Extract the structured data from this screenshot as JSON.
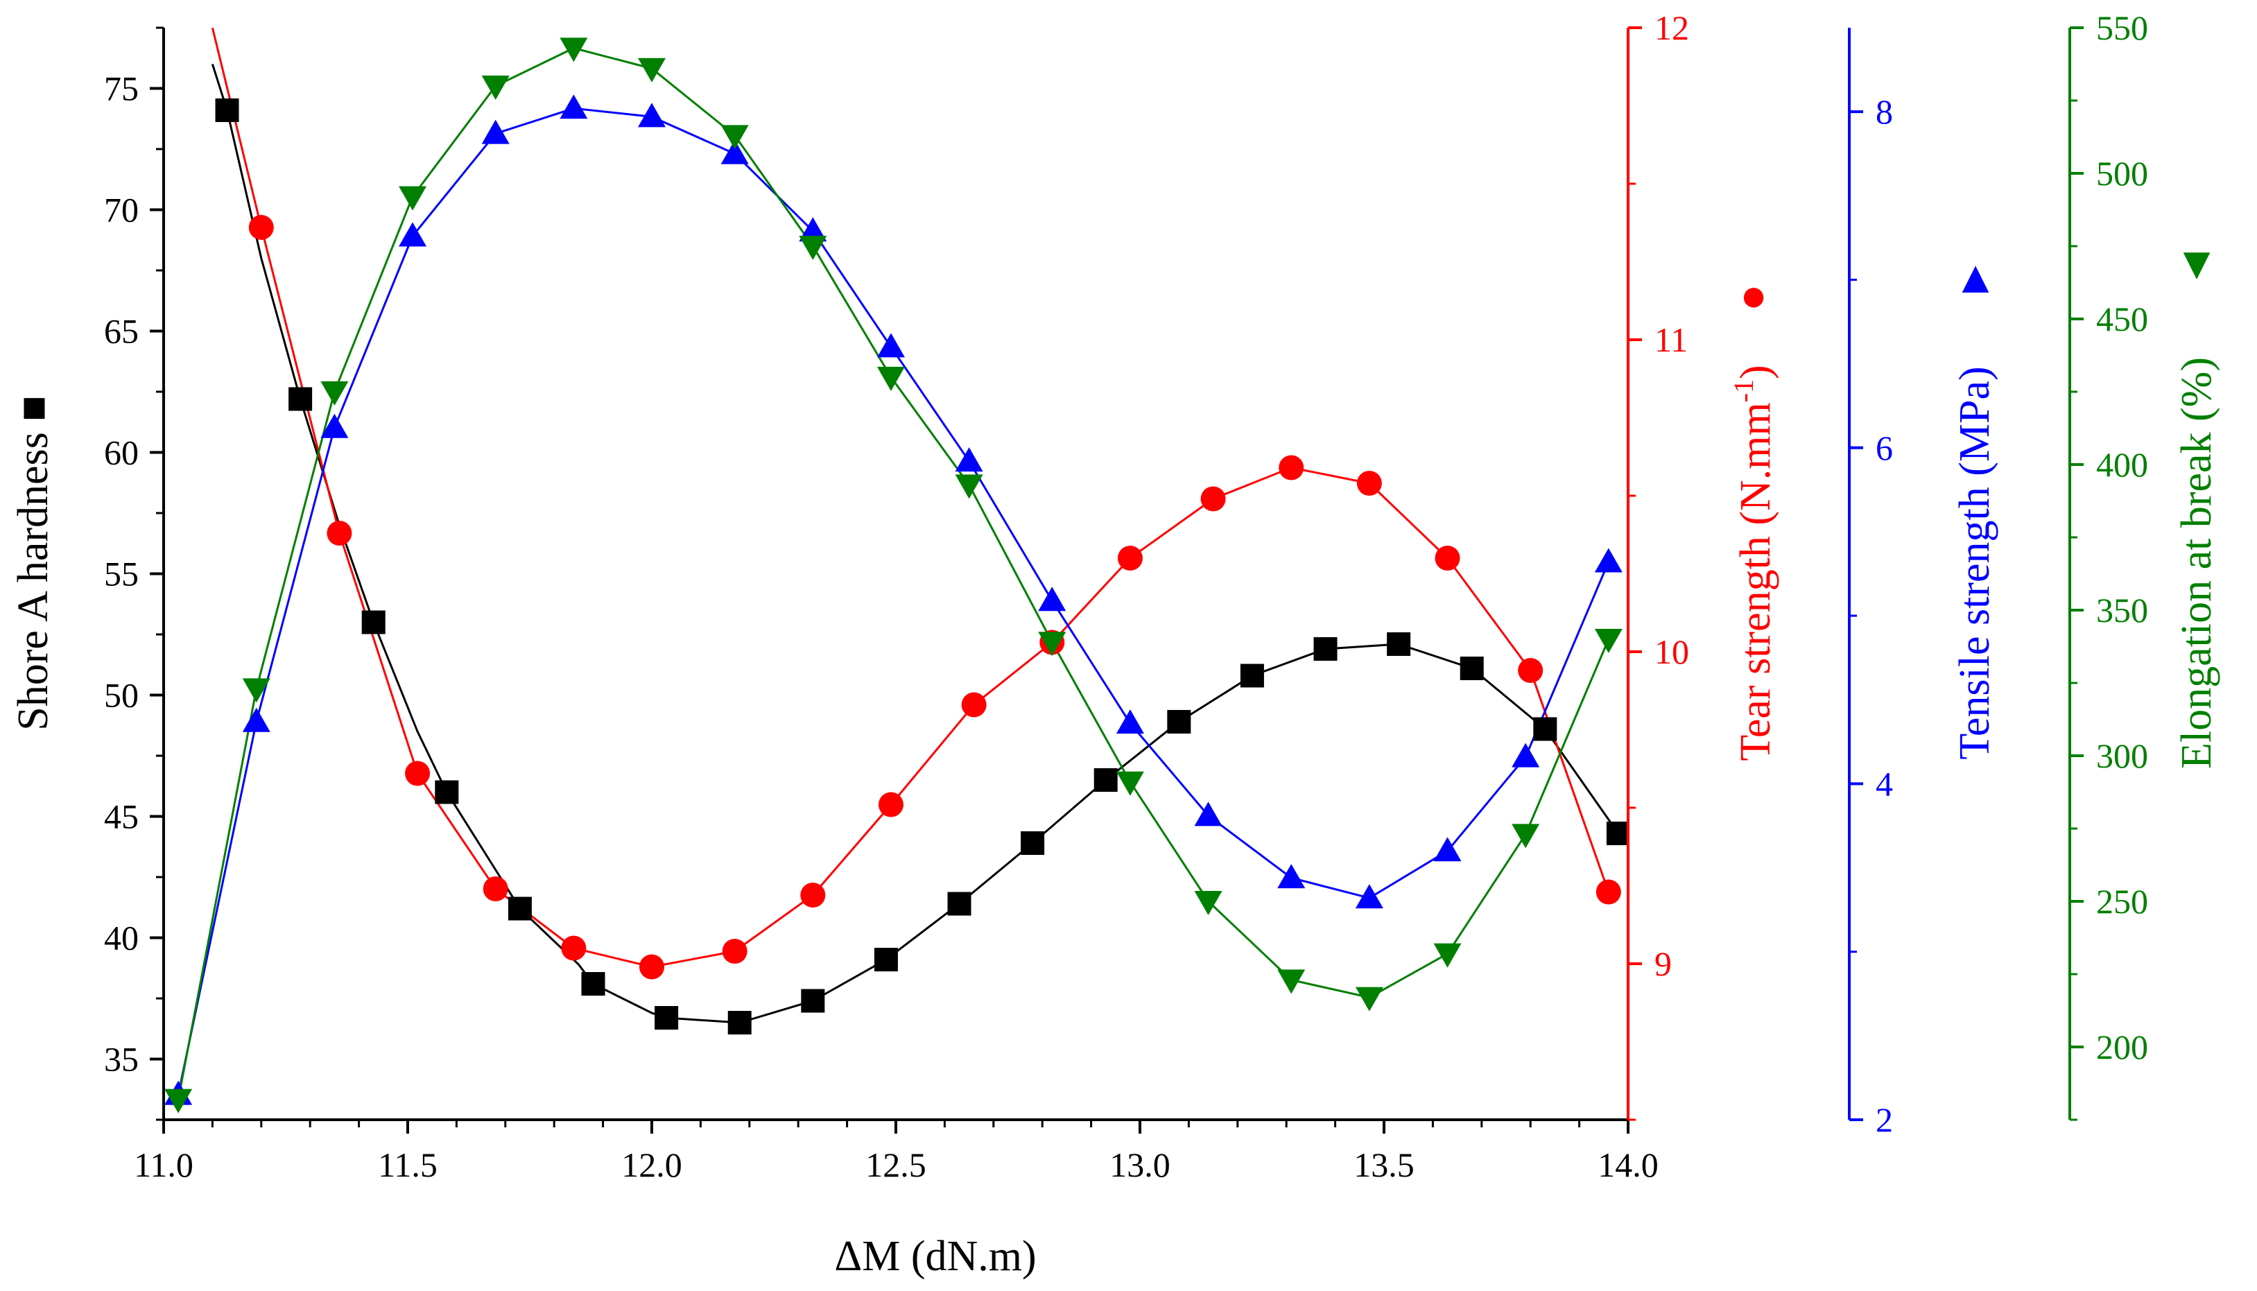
{
  "chart_data": {
    "type": "line",
    "xlabel": "ΔM (dN.m)",
    "xlim": [
      11.0,
      14.0
    ],
    "x_ticks": [
      "11.0",
      "11.5",
      "12.0",
      "12.5",
      "13.0",
      "13.5",
      "14.0"
    ],
    "colors": {
      "hardness": "#000000",
      "tear": "#ff0000",
      "tensile": "#0000ff",
      "elongation": "#007f00"
    },
    "axes": {
      "hardness": {
        "label": "Shore A hardness",
        "legend_marker": "■",
        "ylim": [
          32.5,
          77.5
        ],
        "ticks": [
          "35",
          "40",
          "45",
          "50",
          "55",
          "60",
          "65",
          "70",
          "75"
        ]
      },
      "tear": {
        "label": "Tear strength (N.mm",
        "label_sup": "-1",
        "label_end": ")",
        "legend_marker": "●",
        "ylim": [
          8.5,
          12.0
        ],
        "ticks": [
          "9",
          "10",
          "11",
          "12"
        ]
      },
      "tensile": {
        "label": "Tensile strength (MPa)",
        "legend_marker": "▲",
        "ylim": [
          2,
          8.5
        ],
        "ticks": [
          "2",
          "4",
          "6",
          "8"
        ]
      },
      "elongation": {
        "label": "Elongation at break (%)",
        "legend_marker": "▼",
        "ylim": [
          175,
          550
        ],
        "ticks": [
          "200",
          "250",
          "300",
          "350",
          "400",
          "450",
          "500",
          "550"
        ]
      }
    },
    "series": [
      {
        "name": "Shore A hardness",
        "axis": "hardness",
        "marker": "square",
        "x": [
          11.13,
          11.28,
          11.43,
          11.58,
          11.73,
          11.88,
          12.03,
          12.18,
          12.33,
          12.48,
          12.63,
          12.78,
          12.93,
          13.08,
          13.23,
          13.38,
          13.53,
          13.68,
          13.83,
          13.98
        ],
        "y": [
          74.1,
          62.2,
          53.0,
          46.0,
          41.2,
          38.1,
          36.7,
          36.5,
          37.4,
          39.1,
          41.4,
          43.9,
          46.5,
          48.9,
          50.8,
          51.9,
          52.1,
          51.1,
          48.6,
          44.3
        ],
        "curve_x": [
          11.1,
          11.13,
          11.2,
          11.28,
          11.36,
          11.43,
          11.52,
          11.58,
          11.68,
          11.73,
          11.85,
          11.88,
          12.0,
          12.03,
          12.18,
          12.33,
          12.48,
          12.63,
          12.78,
          12.93,
          13.08,
          13.23,
          13.38,
          13.53,
          13.68,
          13.83,
          13.98
        ],
        "curve_y": [
          76.0,
          74.1,
          68.0,
          62.2,
          57.0,
          53.0,
          48.5,
          46.0,
          42.8,
          41.2,
          38.9,
          38.1,
          36.9,
          36.7,
          36.5,
          37.4,
          39.1,
          41.4,
          43.9,
          46.5,
          48.9,
          50.8,
          51.9,
          52.1,
          51.1,
          48.6,
          44.3
        ]
      },
      {
        "name": "Tear strength",
        "axis": "tear",
        "marker": "circle",
        "x": [
          11.2,
          11.36,
          11.52,
          11.68,
          11.84,
          12.0,
          12.17,
          12.33,
          12.49,
          12.66,
          12.82,
          12.98,
          13.15,
          13.31,
          13.47,
          13.63,
          13.8,
          13.96
        ],
        "y": [
          11.36,
          10.38,
          9.61,
          9.24,
          9.05,
          8.99,
          9.04,
          9.22,
          9.51,
          9.83,
          10.03,
          10.3,
          10.49,
          10.59,
          10.54,
          10.3,
          9.94,
          9.23
        ],
        "curve_x": [
          11.1,
          11.2,
          11.36,
          11.52,
          11.68,
          11.84,
          12.0,
          12.17,
          12.33,
          12.49,
          12.66,
          12.82,
          12.98,
          13.15,
          13.31,
          13.47,
          13.63,
          13.8,
          13.96
        ],
        "curve_y": [
          12.0,
          11.36,
          10.38,
          9.61,
          9.24,
          9.05,
          8.99,
          9.04,
          9.22,
          9.51,
          9.83,
          10.03,
          10.3,
          10.49,
          10.59,
          10.54,
          10.3,
          9.94,
          9.23
        ]
      },
      {
        "name": "Tensile strength",
        "axis": "tensile",
        "marker": "triangle-up",
        "x": [
          11.03,
          11.19,
          11.35,
          11.51,
          11.68,
          11.84,
          12.0,
          12.17,
          12.33,
          12.49,
          12.65,
          12.82,
          12.98,
          13.14,
          13.31,
          13.47,
          13.63,
          13.79,
          13.96
        ],
        "y": [
          2.15,
          4.37,
          6.12,
          7.26,
          7.87,
          8.02,
          7.97,
          7.75,
          7.29,
          6.6,
          5.92,
          5.09,
          4.36,
          3.81,
          3.44,
          3.32,
          3.6,
          4.16,
          5.32
        ],
        "curve_x": [
          11.03,
          11.19,
          11.35,
          11.51,
          11.68,
          11.84,
          12.0,
          12.17,
          12.33,
          12.49,
          12.65,
          12.82,
          12.98,
          13.14,
          13.31,
          13.47,
          13.63,
          13.79,
          13.96
        ],
        "curve_y": [
          2.15,
          4.37,
          6.12,
          7.26,
          7.87,
          8.02,
          7.97,
          7.75,
          7.29,
          6.6,
          5.92,
          5.09,
          4.36,
          3.81,
          3.44,
          3.32,
          3.6,
          4.16,
          5.32
        ]
      },
      {
        "name": "Elongation at break",
        "axis": "elongation",
        "marker": "triangle-down",
        "x": [
          11.03,
          11.19,
          11.35,
          11.51,
          11.68,
          11.84,
          12.0,
          12.17,
          12.33,
          12.49,
          12.65,
          12.82,
          12.98,
          13.14,
          13.31,
          13.47,
          13.63,
          13.79,
          13.96
        ],
        "y": [
          182,
          323,
          425,
          492,
          530,
          543,
          536,
          513,
          475,
          430,
          393,
          339,
          291,
          250,
          223,
          217,
          232,
          273,
          340
        ],
        "curve_x": [
          11.03,
          11.19,
          11.35,
          11.51,
          11.68,
          11.84,
          12.0,
          12.17,
          12.33,
          12.49,
          12.65,
          12.82,
          12.98,
          13.14,
          13.31,
          13.47,
          13.63,
          13.79,
          13.96
        ],
        "curve_y": [
          182,
          323,
          425,
          492,
          530,
          543,
          536,
          513,
          475,
          430,
          393,
          339,
          291,
          250,
          223,
          217,
          232,
          273,
          340
        ]
      }
    ]
  }
}
